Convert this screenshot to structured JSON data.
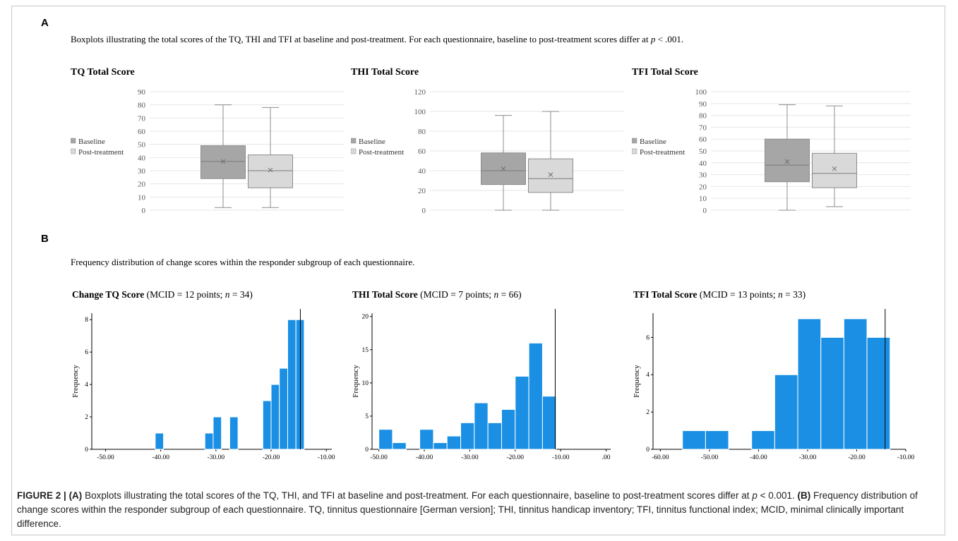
{
  "panel_a": {
    "letter": "A",
    "description_pre": "Boxplots illustrating the total scores of the TQ, THI and TFI at baseline and post-treatment. For each questionnaire, baseline to post-treatment scores differ at ",
    "description_p": "p",
    "description_post": " < .001."
  },
  "panel_b": {
    "letter": "B",
    "description": "Frequency distribution of change scores within the responder subgroup of each questionnaire."
  },
  "caption": {
    "figure_label": "FIGURE 2 |",
    "a_label": "(A)",
    "a_text": " Boxplots illustrating the total scores of the TQ, THI, and TFI at baseline and post-treatment. For each questionnaire, baseline to post-treatment scores differ at ",
    "p_symbol": "p",
    "p_text": " < 0.001. ",
    "b_label": "(B)",
    "b_text": " Frequency distribution of change scores within the responder subgroup of each questionnaire. TQ, tinnitus questionnaire [German version]; THI, tinnitus handicap inventory; TFI, tinnitus functional index; MCID, minimal clinically important difference."
  },
  "colors": {
    "baseline_box": "#a6a6a6",
    "post_box": "#d9d9d9",
    "histogram_bar": "#1a8fe3",
    "grid": "#e6e6e6"
  },
  "chart_data": [
    {
      "type": "boxplot",
      "title": "TQ Total Score",
      "ylim": [
        0,
        90
      ],
      "yticks": [
        0,
        10,
        20,
        30,
        40,
        50,
        60,
        70,
        80,
        90
      ],
      "legend": [
        "Baseline",
        "Post-treatment"
      ],
      "legend_position": "left",
      "grid": true,
      "series": [
        {
          "name": "Baseline",
          "min": 2,
          "q1": 24,
          "median": 37,
          "mean": 37,
          "q3": 49,
          "max": 80
        },
        {
          "name": "Post-treatment",
          "min": 2,
          "q1": 17,
          "median": 30,
          "mean": 30.5,
          "q3": 42,
          "max": 78
        }
      ]
    },
    {
      "type": "boxplot",
      "title": "THI Total Score",
      "ylim": [
        0,
        120
      ],
      "yticks": [
        0,
        20,
        40,
        60,
        80,
        100,
        120
      ],
      "legend": [
        "Baseline",
        "Post-treatment"
      ],
      "legend_position": "left",
      "grid": true,
      "series": [
        {
          "name": "Baseline",
          "min": 0,
          "q1": 26,
          "median": 40,
          "mean": 42,
          "q3": 58,
          "max": 96
        },
        {
          "name": "Post-treatment",
          "min": 0,
          "q1": 18,
          "median": 32,
          "mean": 36,
          "q3": 52,
          "max": 100
        }
      ]
    },
    {
      "type": "boxplot",
      "title": "TFI Total Score",
      "ylim": [
        0,
        100
      ],
      "yticks": [
        0,
        10,
        20,
        30,
        40,
        50,
        60,
        70,
        80,
        90,
        100
      ],
      "legend": [
        "Baseline",
        "Post-treatment"
      ],
      "legend_position": "left",
      "grid": true,
      "series": [
        {
          "name": "Baseline",
          "min": 0,
          "q1": 24,
          "median": 38,
          "mean": 41,
          "q3": 60,
          "max": 89
        },
        {
          "name": "Post-treatment",
          "min": 3,
          "q1": 19,
          "median": 31,
          "mean": 35,
          "q3": 48,
          "max": 88
        }
      ]
    },
    {
      "type": "bar",
      "subtype": "histogram",
      "title_bold": "Change TQ Score",
      "title_rest_pre": " (MCID = 12 points; ",
      "title_n": "n",
      "title_rest_post": " = 34)",
      "ylabel": "Frequency",
      "xlim": [
        -52.5,
        -9
      ],
      "ylim": [
        0,
        8.4
      ],
      "xticks": [
        -50,
        -40,
        -30,
        -20,
        -10
      ],
      "xtick_labels": [
        "-50.00",
        "-40.00",
        "-30.00",
        "-20.00",
        "-10.00"
      ],
      "yticks": [
        0,
        2,
        4,
        6,
        8
      ],
      "bin_width": 1.5,
      "bins": [
        {
          "x0": -41,
          "x1": -39.5,
          "count": 1
        },
        {
          "x0": -32,
          "x1": -30.5,
          "count": 1
        },
        {
          "x0": -30.5,
          "x1": -29,
          "count": 2
        },
        {
          "x0": -27.5,
          "x1": -26,
          "count": 2
        },
        {
          "x0": -21.5,
          "x1": -20,
          "count": 3
        },
        {
          "x0": -20,
          "x1": -18.5,
          "count": 4
        },
        {
          "x0": -18.5,
          "x1": -17,
          "count": 5
        },
        {
          "x0": -17,
          "x1": -15.5,
          "count": 8
        },
        {
          "x0": -15.5,
          "x1": -14,
          "count": 8
        }
      ],
      "reference_line_x": -14.7
    },
    {
      "type": "bar",
      "subtype": "histogram",
      "title_bold": "THI Total Score",
      "title_rest_pre": " (MCID = 7 points; ",
      "title_n": "n",
      "title_rest_post": " = 66)",
      "ylabel": "Frequency",
      "xlim": [
        -51.5,
        1
      ],
      "ylim": [
        0,
        20.5
      ],
      "xticks": [
        -50,
        -40,
        -30,
        -20,
        -10,
        0
      ],
      "xtick_labels": [
        "-50.00",
        "-40.00",
        "-30.00",
        "-20.00",
        "-10.00",
        ".00"
      ],
      "yticks": [
        0,
        5,
        10,
        15,
        20
      ],
      "bin_width": 3,
      "bins": [
        {
          "x0": -50,
          "x1": -47,
          "count": 3
        },
        {
          "x0": -47,
          "x1": -44,
          "count": 1
        },
        {
          "x0": -41,
          "x1": -38,
          "count": 3
        },
        {
          "x0": -38,
          "x1": -35,
          "count": 1
        },
        {
          "x0": -35,
          "x1": -32,
          "count": 2
        },
        {
          "x0": -32,
          "x1": -29,
          "count": 4
        },
        {
          "x0": -29,
          "x1": -26,
          "count": 7
        },
        {
          "x0": -26,
          "x1": -23,
          "count": 4
        },
        {
          "x0": -23,
          "x1": -20,
          "count": 6
        },
        {
          "x0": -20,
          "x1": -17,
          "count": 11
        },
        {
          "x0": -17,
          "x1": -14,
          "count": 16
        },
        {
          "x0": -14,
          "x1": -11,
          "count": 8
        }
      ],
      "reference_line_x": -11.2
    },
    {
      "type": "bar",
      "subtype": "histogram",
      "title_bold": "TFI Total Score",
      "title_rest_pre": " (MCID = 13 points; ",
      "title_n": "n",
      "title_rest_post": " = 33)",
      "ylabel": "Frequency",
      "xlim": [
        -61.5,
        -10
      ],
      "ylim": [
        0,
        7.3
      ],
      "xticks": [
        -60,
        -50,
        -40,
        -30,
        -20,
        -10
      ],
      "xtick_labels": [
        "-60.00",
        "-50.00",
        "-40.00",
        "-30.00",
        "-20.00",
        "-10.00"
      ],
      "yticks": [
        0,
        2,
        4,
        6
      ],
      "bin_width": 4.7,
      "bins": [
        {
          "x0": -55.5,
          "x1": -50.8,
          "count": 1
        },
        {
          "x0": -50.8,
          "x1": -46.1,
          "count": 1
        },
        {
          "x0": -41.4,
          "x1": -36.7,
          "count": 1
        },
        {
          "x0": -36.7,
          "x1": -32,
          "count": 4
        },
        {
          "x0": -32,
          "x1": -27.3,
          "count": 7
        },
        {
          "x0": -27.3,
          "x1": -22.6,
          "count": 6
        },
        {
          "x0": -22.6,
          "x1": -17.9,
          "count": 7
        },
        {
          "x0": -17.9,
          "x1": -13.2,
          "count": 6
        }
      ],
      "reference_line_x": -14.2
    }
  ]
}
